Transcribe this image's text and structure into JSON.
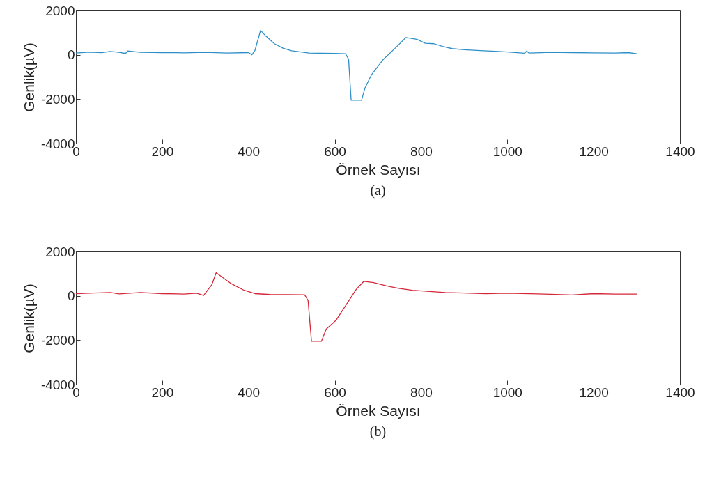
{
  "chart_data": [
    {
      "type": "line",
      "xlabel": "Örnek Sayısı",
      "ylabel": "Genlik(µV)",
      "annotations": [
        "(a)"
      ],
      "xlim": [
        0,
        1400
      ],
      "xticks": [
        0,
        200,
        400,
        600,
        800,
        1000,
        1200,
        1400
      ],
      "ylim": [
        -4000,
        2000
      ],
      "yticks": [
        -4000,
        -2000,
        0,
        2000
      ],
      "grid": false,
      "series": [
        {
          "color": "#2e8fc8",
          "x": [
            0,
            30,
            60,
            80,
            100,
            115,
            120,
            150,
            200,
            250,
            300,
            350,
            400,
            408,
            415,
            428,
            440,
            460,
            480,
            500,
            540,
            600,
            625,
            632,
            638,
            662,
            670,
            685,
            711,
            740,
            765,
            775,
            790,
            810,
            830,
            850,
            872,
            900,
            937,
            980,
            1000,
            1040,
            1045,
            1050,
            1100,
            1150,
            1200,
            1250,
            1280,
            1300
          ],
          "values": [
            80,
            120,
            100,
            150,
            110,
            60,
            170,
            110,
            100,
            90,
            110,
            80,
            100,
            0,
            200,
            1100,
            850,
            500,
            300,
            180,
            80,
            60,
            50,
            -200,
            -2050,
            -2050,
            -1500,
            -900,
            -240,
            300,
            780,
            750,
            700,
            520,
            500,
            380,
            280,
            230,
            190,
            150,
            130,
            70,
            170,
            80,
            110,
            100,
            90,
            80,
            100,
            50
          ]
        }
      ]
    },
    {
      "type": "line",
      "xlabel": "Örnek Sayısı",
      "ylabel": "Genlik(µV)",
      "annotations": [
        "(b)"
      ],
      "xlim": [
        0,
        1400
      ],
      "xticks": [
        0,
        200,
        400,
        600,
        800,
        1000,
        1200,
        1400
      ],
      "ylim": [
        -4000,
        2000
      ],
      "yticks": [
        -4000,
        -2000,
        0,
        2000
      ],
      "grid": false,
      "series": [
        {
          "color": "#d4283a",
          "x": [
            0,
            40,
            80,
            100,
            150,
            200,
            250,
            280,
            296,
            305,
            315,
            325,
            335,
            360,
            390,
            415,
            450,
            530,
            538,
            546,
            569,
            580,
            603,
            630,
            650,
            667,
            690,
            720,
            748,
            780,
            820,
            856,
            900,
            950,
            1000,
            1050,
            1100,
            1150,
            1200,
            1250,
            1300
          ],
          "values": [
            100,
            130,
            150,
            90,
            150,
            100,
            80,
            120,
            20,
            250,
            500,
            1040,
            900,
            550,
            250,
            100,
            60,
            50,
            -200,
            -2050,
            -2050,
            -1500,
            -1100,
            -300,
            300,
            650,
            600,
            450,
            340,
            250,
            200,
            150,
            130,
            100,
            120,
            100,
            70,
            40,
            100,
            80,
            80
          ]
        }
      ]
    }
  ]
}
